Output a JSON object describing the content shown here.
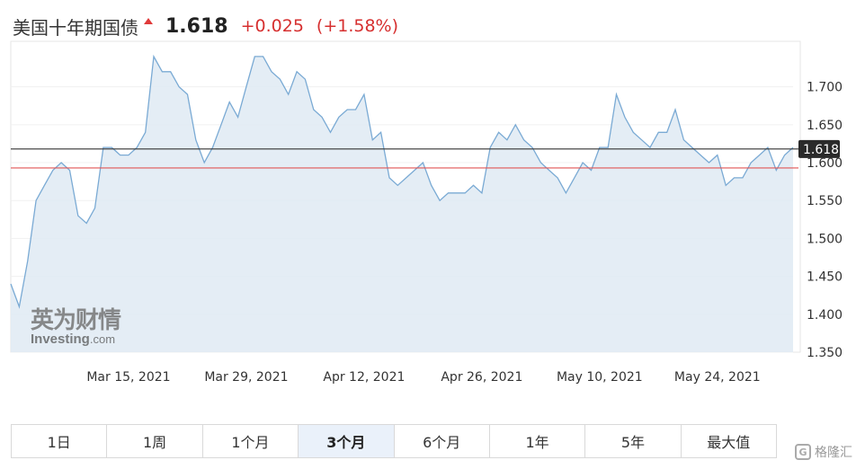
{
  "header": {
    "title": "美国十年期国债",
    "price": "1.618",
    "change": "+0.025",
    "change_pct": "(+1.58%)"
  },
  "watermark": {
    "cn": "英为财情",
    "en_main": "Investing",
    "en_suffix": ".com"
  },
  "tabs": [
    {
      "label": "1日",
      "active": false
    },
    {
      "label": "1周",
      "active": false
    },
    {
      "label": "1个月",
      "active": false
    },
    {
      "label": "3个月",
      "active": true
    },
    {
      "label": "6个月",
      "active": false
    },
    {
      "label": "1年",
      "active": false
    },
    {
      "label": "5年",
      "active": false
    },
    {
      "label": "最大值",
      "active": false
    }
  ],
  "brand": {
    "icon_text": "G",
    "label": "格隆汇"
  },
  "colors": {
    "line": "#7aaad4",
    "fill": "#dfeaf3",
    "current_line": "#333333",
    "previous_close_line": "#e05555",
    "price_tag": "#2a2a2a",
    "up": "#d62f2f"
  },
  "chart_data": {
    "type": "area",
    "x_tick_labels": [
      "Mar 15, 2021",
      "Mar 29, 2021",
      "Apr 12, 2021",
      "Apr 26, 2021",
      "May 10, 2021",
      "May 24, 2021"
    ],
    "y_ticks": [
      1.35,
      1.4,
      1.45,
      1.5,
      1.55,
      1.6,
      1.65,
      1.7
    ],
    "y_tick_labels": [
      "1.350",
      "1.400",
      "1.450",
      "1.500",
      "1.550",
      "1.600",
      "1.650",
      "1.700"
    ],
    "ylim": [
      1.35,
      1.76
    ],
    "x_range": [
      "2021-03-01",
      "2021-06-02"
    ],
    "current_value": 1.618,
    "current_label": "1.618",
    "previous_close": 1.593,
    "series": [
      {
        "points": [
          [
            "2021-03-01",
            1.44
          ],
          [
            "2021-03-02",
            1.41
          ],
          [
            "2021-03-03",
            1.47
          ],
          [
            "2021-03-04",
            1.55
          ],
          [
            "2021-03-05",
            1.57
          ],
          [
            "2021-03-06",
            1.59
          ],
          [
            "2021-03-07",
            1.6
          ],
          [
            "2021-03-08",
            1.59
          ],
          [
            "2021-03-09",
            1.53
          ],
          [
            "2021-03-10",
            1.52
          ],
          [
            "2021-03-11",
            1.54
          ],
          [
            "2021-03-12",
            1.62
          ],
          [
            "2021-03-13",
            1.62
          ],
          [
            "2021-03-14",
            1.61
          ],
          [
            "2021-03-15",
            1.61
          ],
          [
            "2021-03-16",
            1.62
          ],
          [
            "2021-03-17",
            1.64
          ],
          [
            "2021-03-18",
            1.74
          ],
          [
            "2021-03-19",
            1.72
          ],
          [
            "2021-03-20",
            1.72
          ],
          [
            "2021-03-21",
            1.7
          ],
          [
            "2021-03-22",
            1.69
          ],
          [
            "2021-03-23",
            1.63
          ],
          [
            "2021-03-24",
            1.6
          ],
          [
            "2021-03-25",
            1.62
          ],
          [
            "2021-03-26",
            1.65
          ],
          [
            "2021-03-27",
            1.68
          ],
          [
            "2021-03-28",
            1.66
          ],
          [
            "2021-03-29",
            1.7
          ],
          [
            "2021-03-30",
            1.74
          ],
          [
            "2021-03-31",
            1.74
          ],
          [
            "2021-04-01",
            1.72
          ],
          [
            "2021-04-02",
            1.71
          ],
          [
            "2021-04-03",
            1.69
          ],
          [
            "2021-04-04",
            1.72
          ],
          [
            "2021-04-05",
            1.71
          ],
          [
            "2021-04-06",
            1.67
          ],
          [
            "2021-04-07",
            1.66
          ],
          [
            "2021-04-08",
            1.64
          ],
          [
            "2021-04-09",
            1.66
          ],
          [
            "2021-04-10",
            1.67
          ],
          [
            "2021-04-11",
            1.67
          ],
          [
            "2021-04-12",
            1.69
          ],
          [
            "2021-04-13",
            1.63
          ],
          [
            "2021-04-14",
            1.64
          ],
          [
            "2021-04-15",
            1.58
          ],
          [
            "2021-04-16",
            1.57
          ],
          [
            "2021-04-17",
            1.58
          ],
          [
            "2021-04-18",
            1.59
          ],
          [
            "2021-04-19",
            1.6
          ],
          [
            "2021-04-20",
            1.57
          ],
          [
            "2021-04-21",
            1.55
          ],
          [
            "2021-04-22",
            1.56
          ],
          [
            "2021-04-23",
            1.56
          ],
          [
            "2021-04-24",
            1.56
          ],
          [
            "2021-04-25",
            1.57
          ],
          [
            "2021-04-26",
            1.56
          ],
          [
            "2021-04-27",
            1.62
          ],
          [
            "2021-04-28",
            1.64
          ],
          [
            "2021-04-29",
            1.63
          ],
          [
            "2021-04-30",
            1.65
          ],
          [
            "2021-05-01",
            1.63
          ],
          [
            "2021-05-02",
            1.62
          ],
          [
            "2021-05-03",
            1.6
          ],
          [
            "2021-05-04",
            1.59
          ],
          [
            "2021-05-05",
            1.58
          ],
          [
            "2021-05-06",
            1.56
          ],
          [
            "2021-05-07",
            1.58
          ],
          [
            "2021-05-08",
            1.6
          ],
          [
            "2021-05-09",
            1.59
          ],
          [
            "2021-05-10",
            1.62
          ],
          [
            "2021-05-11",
            1.62
          ],
          [
            "2021-05-12",
            1.69
          ],
          [
            "2021-05-13",
            1.66
          ],
          [
            "2021-05-14",
            1.64
          ],
          [
            "2021-05-15",
            1.63
          ],
          [
            "2021-05-16",
            1.62
          ],
          [
            "2021-05-17",
            1.64
          ],
          [
            "2021-05-18",
            1.64
          ],
          [
            "2021-05-19",
            1.67
          ],
          [
            "2021-05-20",
            1.63
          ],
          [
            "2021-05-21",
            1.62
          ],
          [
            "2021-05-22",
            1.61
          ],
          [
            "2021-05-23",
            1.6
          ],
          [
            "2021-05-24",
            1.61
          ],
          [
            "2021-05-25",
            1.57
          ],
          [
            "2021-05-26",
            1.58
          ],
          [
            "2021-05-27",
            1.58
          ],
          [
            "2021-05-28",
            1.6
          ],
          [
            "2021-05-29",
            1.61
          ],
          [
            "2021-05-30",
            1.62
          ],
          [
            "2021-05-31",
            1.59
          ],
          [
            "2021-06-01",
            1.61
          ],
          [
            "2021-06-02",
            1.62
          ]
        ]
      }
    ]
  }
}
